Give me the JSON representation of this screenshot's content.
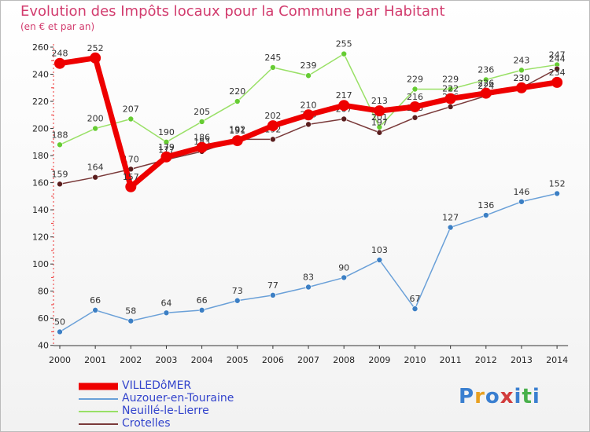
{
  "title": "Evolution des Impôts locaux pour la Commune par Habitant",
  "subtitle": "(en € et par an)",
  "brand": {
    "letters": [
      "P",
      "r",
      "o",
      "x",
      "i",
      "t",
      "i"
    ],
    "colors": [
      "#3a7fd0",
      "#e8a020",
      "#3a7fd0",
      "#d23c3c",
      "#3a7fd0",
      "#49b04b",
      "#3a7fd0"
    ]
  },
  "chart_data": {
    "type": "line",
    "x": [
      "2000",
      "2001",
      "2002",
      "2003",
      "2004",
      "2005",
      "2006",
      "2007",
      "2008",
      "2009",
      "2010",
      "2011",
      "2012",
      "2013",
      "2014"
    ],
    "ylim": [
      40,
      260
    ],
    "yticks": [
      40,
      60,
      80,
      100,
      120,
      140,
      160,
      180,
      200,
      220,
      240,
      260
    ],
    "grid": false,
    "legend_position": "bottom-left",
    "series": [
      {
        "name": "Auzouer-en-Touraine",
        "color": "#6aa0d8",
        "marker": "#3c7fc4",
        "width": 1.5,
        "r": 3.5,
        "values": [
          50,
          66,
          58,
          64,
          66,
          73,
          77,
          83,
          90,
          103,
          67,
          127,
          136,
          146,
          152
        ],
        "labels": [
          "50",
          "66",
          "58",
          "64",
          "66",
          "73",
          "77",
          "83",
          "90",
          "103",
          "67",
          "127",
          "136",
          "146",
          "152"
        ]
      },
      {
        "name": "Neuillé-le-Lierre",
        "color": "#99e066",
        "marker": "#66cc33",
        "width": 1.5,
        "r": 3.5,
        "values": [
          188,
          200,
          207,
          190,
          205,
          220,
          245,
          239,
          255,
          201,
          229,
          229,
          236,
          243,
          247
        ],
        "labels": [
          "188",
          "200",
          "207",
          "190",
          "205",
          "220",
          "245",
          "239",
          "255",
          "201",
          "229",
          "229",
          "236",
          "243",
          "247"
        ]
      },
      {
        "name": "Crotelles",
        "color": "#7a3a3a",
        "marker": "#5a1e1e",
        "width": 1.5,
        "r": 3.5,
        "values": [
          159,
          164,
          170,
          177,
          183,
          192,
          192,
          203,
          207,
          197,
          208,
          216,
          224,
          230,
          244
        ],
        "labels": [
          "159",
          "164",
          "170",
          "177",
          "183",
          "192",
          "192",
          "203",
          "207",
          "197",
          "208",
          "216",
          "224",
          "230",
          "244"
        ]
      },
      {
        "name": "VILLEDôMER",
        "color": "#ee0000",
        "marker": "#ee0000",
        "width": 7,
        "r": 7,
        "values": [
          248,
          252,
          157,
          179,
          186,
          191,
          202,
          210,
          217,
          213,
          216,
          222,
          226,
          230,
          234
        ],
        "labels": [
          "248",
          "252",
          "157",
          "179",
          "186",
          "191",
          "202",
          "210",
          "217",
          "213",
          "216",
          "222",
          "226",
          "230",
          "234"
        ]
      }
    ],
    "legend": [
      {
        "name": "VILLEDôMER",
        "color": "#ee0000",
        "thick": true
      },
      {
        "name": "Auzouer-en-Touraine",
        "color": "#6aa0d8",
        "thick": false
      },
      {
        "name": "Neuillé-le-Lierre",
        "color": "#99e066",
        "thick": false
      },
      {
        "name": "Crotelles",
        "color": "#7a3a3a",
        "thick": false
      }
    ]
  }
}
